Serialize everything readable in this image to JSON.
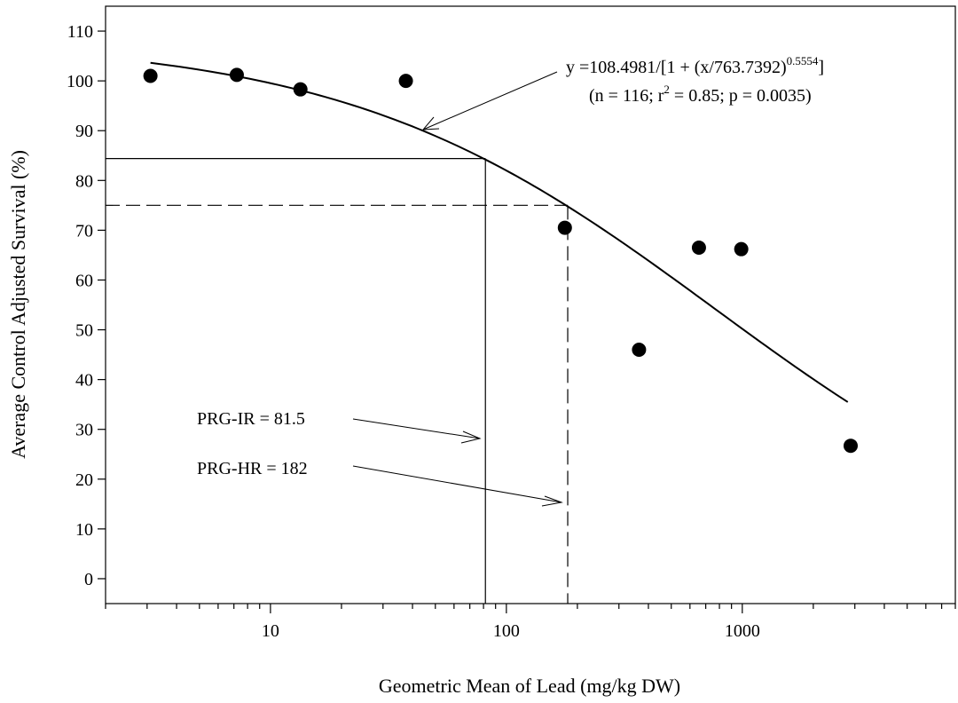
{
  "chart_data": {
    "type": "scatter",
    "title": "",
    "xlabel": "Geometric Mean of Lead (mg/kg DW)",
    "ylabel": "Average Control Adjusted Survival (%)",
    "x_scale": "log",
    "xlim": [
      2,
      8000
    ],
    "ylim": [
      -5,
      115
    ],
    "x_ticks": [
      10,
      100,
      1000
    ],
    "x_tick_labels": [
      "10",
      "100",
      "1000"
    ],
    "y_ticks": [
      0,
      10,
      20,
      30,
      40,
      50,
      60,
      70,
      80,
      90,
      100,
      110
    ],
    "y_tick_labels": [
      "0",
      "10",
      "20",
      "30",
      "40",
      "50",
      "60",
      "70",
      "80",
      "90",
      "100",
      "110"
    ],
    "grid": false,
    "points": [
      {
        "x": 3.1,
        "y": 101.0
      },
      {
        "x": 7.2,
        "y": 101.2
      },
      {
        "x": 13.4,
        "y": 98.3
      },
      {
        "x": 37.5,
        "y": 100.0
      },
      {
        "x": 177,
        "y": 70.5
      },
      {
        "x": 365,
        "y": 46.0
      },
      {
        "x": 655,
        "y": 66.5
      },
      {
        "x": 990,
        "y": 66.2
      },
      {
        "x": 2880,
        "y": 26.7
      }
    ],
    "fit": {
      "equation_main": "y =108.4981/[1 + (x/763.7392)",
      "equation_exponent": "0.5554",
      "equation_close": "]",
      "stats_open": "(n = 116; r",
      "stats_sup": "2",
      "stats_rest": " = 0.85; p = 0.0035)",
      "a": 108.4981,
      "b": 763.7392,
      "c": 0.5554,
      "x_range": [
        3.1,
        2800
      ]
    },
    "thresholds": [
      {
        "label": "PRG-IR = 81.5",
        "x": 81.5,
        "y": 84.4,
        "style": "solid"
      },
      {
        "label": "PRG-HR = 182",
        "x": 182,
        "y": 75.0,
        "style": "dashed"
      }
    ]
  }
}
